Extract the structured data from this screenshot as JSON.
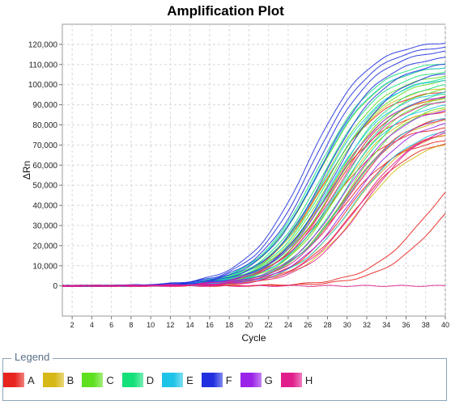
{
  "chart_data": {
    "type": "line",
    "title": "Amplification Plot",
    "xlabel": "Cycle",
    "ylabel": "ΔRn",
    "xlim": [
      1,
      40
    ],
    "ylim": [
      -15000,
      130000
    ],
    "x_ticks": [
      2,
      4,
      6,
      8,
      10,
      12,
      14,
      16,
      18,
      20,
      22,
      24,
      26,
      28,
      30,
      32,
      34,
      36,
      38,
      40
    ],
    "y_ticks": [
      0,
      10000,
      20000,
      30000,
      40000,
      50000,
      60000,
      70000,
      80000,
      90000,
      100000,
      110000,
      120000
    ],
    "y_tick_labels": [
      "0",
      "10,000",
      "20,000",
      "30,000",
      "40,000",
      "50,000",
      "60,000",
      "70,000",
      "80,000",
      "90,000",
      "100,000",
      "110,000",
      "120,000"
    ],
    "grid": true,
    "legend_position": "bottom",
    "series": [
      {
        "name": "A",
        "color": "#e8241e",
        "curves": [
          {
            "ct": 23.2,
            "plateau": 98000
          },
          {
            "ct": 23.6,
            "plateau": 88000
          },
          {
            "ct": 24.0,
            "plateau": 80000
          },
          {
            "ct": 24.5,
            "plateau": 96000
          },
          {
            "ct": 25.0,
            "plateau": 74000
          },
          {
            "ct": 25.5,
            "plateau": 86000
          },
          {
            "ct": 26.0,
            "plateau": 78000
          },
          {
            "ct": 26.5,
            "plateau": 74000
          },
          {
            "ct": 34.0,
            "plateau": 72000
          },
          {
            "ct": 35.3,
            "plateau": 66000
          }
        ]
      },
      {
        "name": "B",
        "color": "#d6b816",
        "curves": [
          {
            "ct": 23.4,
            "plateau": 100000
          },
          {
            "ct": 24.0,
            "plateau": 95000
          },
          {
            "ct": 24.8,
            "plateau": 90000
          },
          {
            "ct": 25.6,
            "plateau": 85000
          },
          {
            "ct": 26.3,
            "plateau": 78000
          },
          {
            "ct": 27.0,
            "plateau": 74000
          }
        ]
      },
      {
        "name": "C",
        "color": "#5fe01e",
        "curves": [
          {
            "ct": 22.8,
            "plateau": 110000
          },
          {
            "ct": 23.4,
            "plateau": 106000
          },
          {
            "ct": 24.0,
            "plateau": 104000
          },
          {
            "ct": 24.6,
            "plateau": 100000
          },
          {
            "ct": 25.2,
            "plateau": 96000
          },
          {
            "ct": 25.8,
            "plateau": 92000
          }
        ]
      },
      {
        "name": "D",
        "color": "#14e07a",
        "curves": [
          {
            "ct": 22.6,
            "plateau": 112000
          },
          {
            "ct": 23.2,
            "plateau": 108000
          },
          {
            "ct": 23.8,
            "plateau": 105000
          },
          {
            "ct": 24.4,
            "plateau": 102000
          },
          {
            "ct": 25.0,
            "plateau": 98000
          },
          {
            "ct": 25.6,
            "plateau": 95000
          }
        ]
      },
      {
        "name": "E",
        "color": "#1ec4e8",
        "curves": [
          {
            "ct": 22.7,
            "plateau": 110000
          },
          {
            "ct": 23.4,
            "plateau": 104000
          },
          {
            "ct": 24.0,
            "plateau": 98000
          },
          {
            "ct": 24.8,
            "plateau": 92000
          },
          {
            "ct": 25.6,
            "plateau": 86000
          },
          {
            "ct": 26.4,
            "plateau": 80000
          }
        ]
      },
      {
        "name": "F",
        "color": "#2030e0",
        "curves": [
          {
            "ct": 21.8,
            "plateau": 122000
          },
          {
            "ct": 22.2,
            "plateau": 120000
          },
          {
            "ct": 22.6,
            "plateau": 118000
          },
          {
            "ct": 23.0,
            "plateau": 115000
          },
          {
            "ct": 23.6,
            "plateau": 112000
          },
          {
            "ct": 24.4,
            "plateau": 108000
          }
        ]
      },
      {
        "name": "G",
        "color": "#9a24e8",
        "curves": [
          {
            "ct": 24.2,
            "plateau": 96000
          },
          {
            "ct": 25.4,
            "plateau": 90000
          },
          {
            "ct": 26.2,
            "plateau": 84000
          }
        ]
      },
      {
        "name": "H",
        "color": "#e01e8c",
        "curves": [
          {
            "ct": 24.6,
            "plateau": 94000
          },
          {
            "ct": 25.8,
            "plateau": 86000
          },
          {
            "ct": 27.0,
            "plateau": 80000
          },
          {
            "ct": 27.6,
            "plateau": 82000
          },
          {
            "ct": 40.0,
            "plateau": 0
          }
        ]
      }
    ]
  },
  "legend": {
    "title": "Legend",
    "items": [
      {
        "label": "A",
        "color": "#e8241e"
      },
      {
        "label": "B",
        "color": "#d6b816"
      },
      {
        "label": "C",
        "color": "#5fe01e"
      },
      {
        "label": "D",
        "color": "#14e07a"
      },
      {
        "label": "E",
        "color": "#1ec4e8"
      },
      {
        "label": "F",
        "color": "#2030e0"
      },
      {
        "label": "G",
        "color": "#9a24e8"
      },
      {
        "label": "H",
        "color": "#e01e8c"
      }
    ]
  }
}
